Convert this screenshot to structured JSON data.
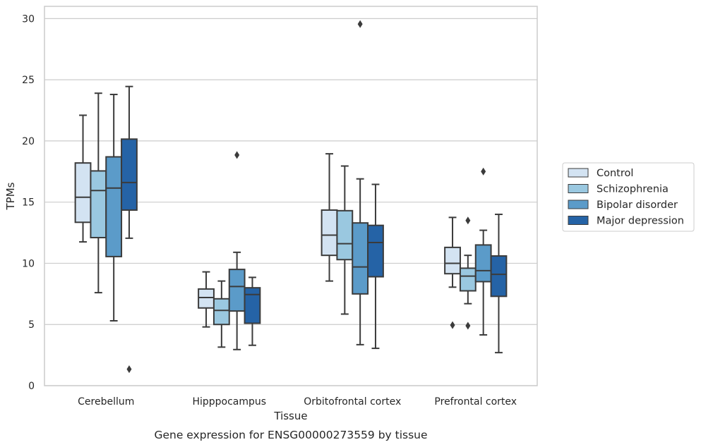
{
  "chart_data": {
    "type": "box",
    "xlabel": "Tissue",
    "ylabel": "TPMs",
    "caption": "Gene expression for ENSG00000273559 by tissue",
    "ylim": [
      0,
      31
    ],
    "yticks": [
      0,
      5,
      10,
      15,
      20,
      25,
      30
    ],
    "grid": "horizontal",
    "legend_position": "right",
    "categories": [
      "Cerebellum",
      "Hipppocampus",
      "Orbitofrontal cortex",
      "Prefrontal cortex"
    ],
    "series": [
      {
        "name": "Control",
        "color": "#d3e3f2",
        "boxes": [
          {
            "whislo": 11.75,
            "q1": 13.35,
            "med": 15.4,
            "q3": 18.2,
            "whishi": 22.1,
            "fliers": []
          },
          {
            "whislo": 4.8,
            "q1": 6.35,
            "med": 7.2,
            "q3": 7.9,
            "whishi": 9.3,
            "fliers": []
          },
          {
            "whislo": 8.55,
            "q1": 10.65,
            "med": 12.3,
            "q3": 14.35,
            "whishi": 18.95,
            "fliers": []
          },
          {
            "whislo": 8.05,
            "q1": 9.15,
            "med": 10.0,
            "q3": 11.3,
            "whishi": 13.75,
            "fliers": [
              4.95
            ]
          }
        ]
      },
      {
        "name": "Schizophrenia",
        "color": "#9ac8e0",
        "boxes": [
          {
            "whislo": 7.6,
            "q1": 12.1,
            "med": 15.95,
            "q3": 17.55,
            "whishi": 23.9,
            "fliers": []
          },
          {
            "whislo": 3.15,
            "q1": 5.0,
            "med": 6.15,
            "q3": 7.1,
            "whishi": 8.55,
            "fliers": []
          },
          {
            "whislo": 5.85,
            "q1": 10.3,
            "med": 11.6,
            "q3": 14.3,
            "whishi": 17.95,
            "fliers": []
          },
          {
            "whislo": 6.7,
            "q1": 7.75,
            "med": 8.95,
            "q3": 9.6,
            "whishi": 10.65,
            "fliers": [
              4.9,
              13.5
            ]
          }
        ]
      },
      {
        "name": "Bipolar disorder",
        "color": "#5b9bc9",
        "boxes": [
          {
            "whislo": 5.3,
            "q1": 10.55,
            "med": 16.15,
            "q3": 18.7,
            "whishi": 23.8,
            "fliers": []
          },
          {
            "whislo": 2.95,
            "q1": 6.1,
            "med": 8.1,
            "q3": 9.5,
            "whishi": 10.9,
            "fliers": [
              18.85
            ]
          },
          {
            "whislo": 3.35,
            "q1": 7.5,
            "med": 9.7,
            "q3": 13.3,
            "whishi": 16.9,
            "fliers": [
              29.55
            ]
          },
          {
            "whislo": 4.15,
            "q1": 8.5,
            "med": 9.4,
            "q3": 11.5,
            "whishi": 12.7,
            "fliers": [
              17.5
            ]
          }
        ]
      },
      {
        "name": "Major depression",
        "color": "#2563a6",
        "boxes": [
          {
            "whislo": 12.05,
            "q1": 14.35,
            "med": 16.6,
            "q3": 20.15,
            "whishi": 24.45,
            "fliers": [
              1.35
            ]
          },
          {
            "whislo": 3.3,
            "q1": 5.1,
            "med": 7.45,
            "q3": 8.0,
            "whishi": 8.85,
            "fliers": []
          },
          {
            "whislo": 3.05,
            "q1": 8.9,
            "med": 11.7,
            "q3": 13.1,
            "whishi": 16.45,
            "fliers": []
          },
          {
            "whislo": 2.7,
            "q1": 7.3,
            "med": 9.1,
            "q3": 10.6,
            "whishi": 14.0,
            "fliers": []
          }
        ]
      }
    ]
  }
}
